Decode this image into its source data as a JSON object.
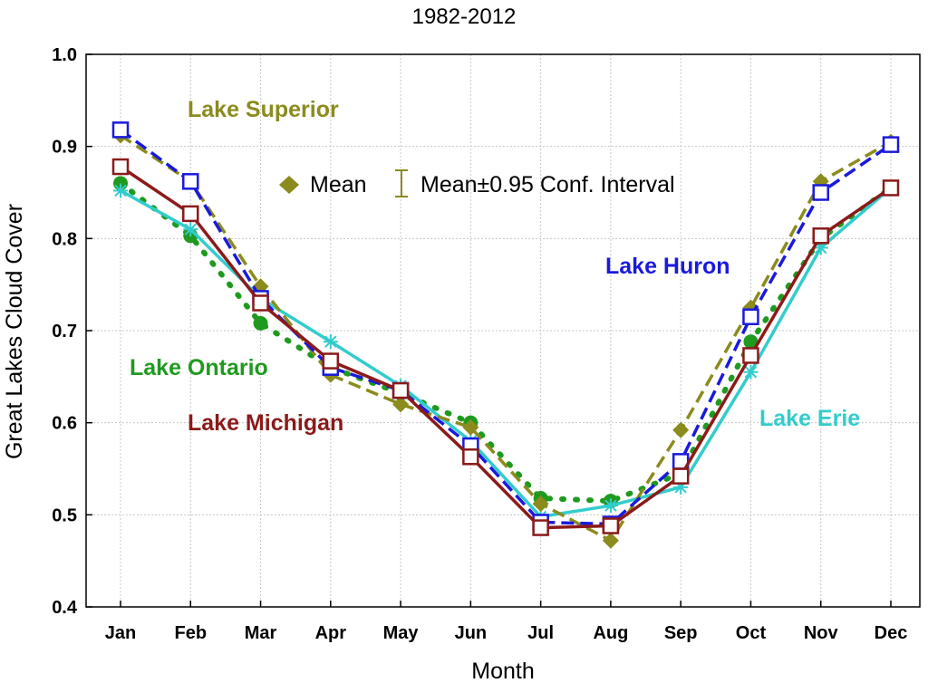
{
  "chart_data": {
    "type": "line",
    "title": "1982-2012",
    "xlabel": "Month",
    "ylabel": "Great Lakes Cloud Cover",
    "categories": [
      "Jan",
      "Feb",
      "Mar",
      "Apr",
      "May",
      "Jun",
      "Jul",
      "Aug",
      "Sep",
      "Oct",
      "Nov",
      "Dec"
    ],
    "ylim": [
      0.4,
      1.0
    ],
    "yticks": [
      "0.4",
      "0.5",
      "0.6",
      "0.7",
      "0.8",
      "0.9",
      "1.0"
    ],
    "grid": true,
    "legend": {
      "mean_label": "Mean",
      "ci_label": "Mean±0.95 Conf. Interval",
      "placement": "top-center"
    },
    "series": [
      {
        "name": "Lake Superior",
        "color": "#8b8b1e",
        "line": "dashed",
        "marker": "diamond",
        "values": [
          0.912,
          0.862,
          0.748,
          0.652,
          0.62,
          0.595,
          0.512,
          0.472,
          0.592,
          0.725,
          0.862,
          0.905
        ]
      },
      {
        "name": "Lake Huron",
        "color": "#1a1adc",
        "line": "dashed",
        "marker": "open-square",
        "values": [
          0.918,
          0.862,
          0.735,
          0.66,
          0.635,
          0.575,
          0.492,
          0.49,
          0.558,
          0.715,
          0.85,
          0.902
        ]
      },
      {
        "name": "Lake Ontario",
        "color": "#1f9a1f",
        "line": "dotted",
        "marker": "circle",
        "values": [
          0.86,
          0.803,
          0.708,
          0.66,
          0.632,
          0.6,
          0.518,
          0.515,
          0.545,
          0.688,
          0.8,
          0.855
        ]
      },
      {
        "name": "Lake Erie",
        "color": "#33cccc",
        "line": "solid",
        "marker": "asterisk",
        "values": [
          0.852,
          0.81,
          0.735,
          0.688,
          0.64,
          0.58,
          0.498,
          0.51,
          0.53,
          0.655,
          0.79,
          0.855
        ]
      },
      {
        "name": "Lake Michigan",
        "color": "#8b1a1a",
        "line": "solid",
        "marker": "open-square",
        "values": [
          0.878,
          0.827,
          0.73,
          0.667,
          0.635,
          0.563,
          0.486,
          0.488,
          0.542,
          0.673,
          0.803,
          0.855
        ]
      }
    ],
    "annotations": [
      {
        "text": "Lake Superior",
        "color": "#8b8b1e"
      },
      {
        "text": "Lake Huron",
        "color": "#1a1adc"
      },
      {
        "text": "Lake Ontario",
        "color": "#1f9a1f"
      },
      {
        "text": "Lake Michigan",
        "color": "#8b1a1a"
      },
      {
        "text": "Lake Erie",
        "color": "#33cccc"
      }
    ]
  }
}
